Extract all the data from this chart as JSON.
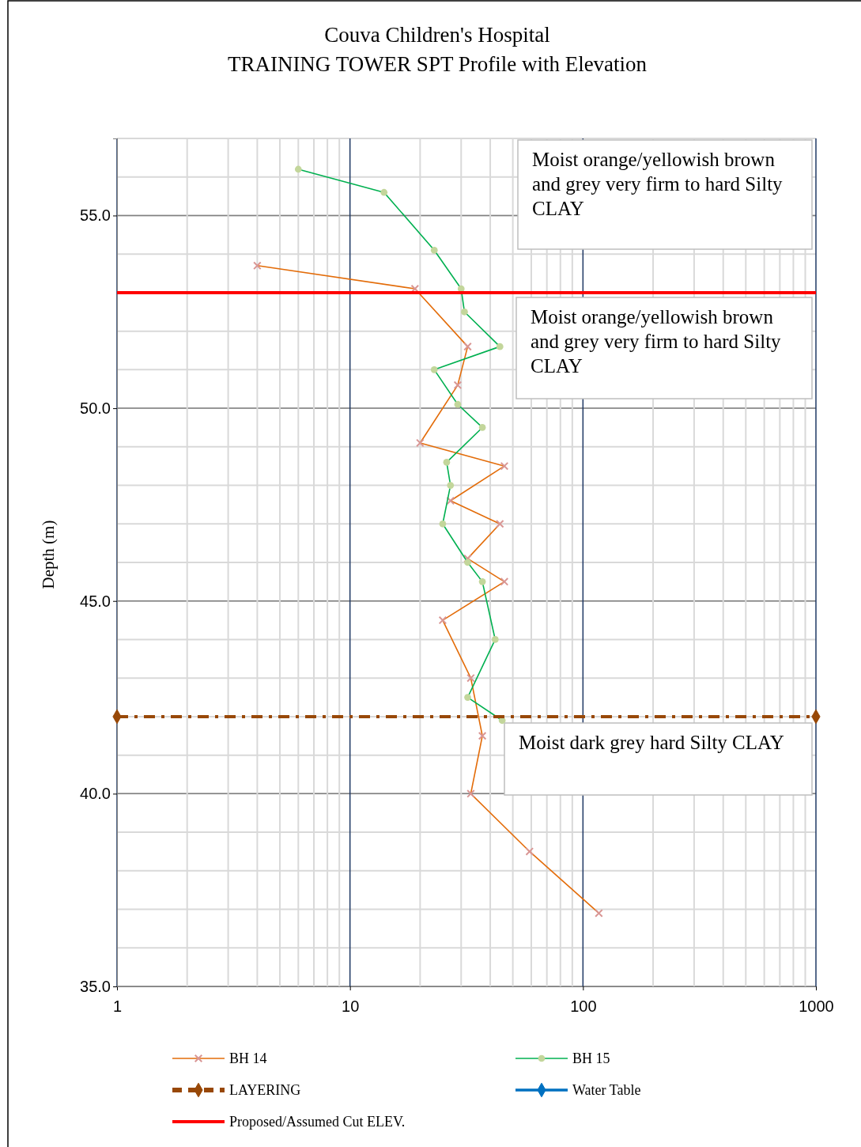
{
  "chart_data": {
    "type": "line",
    "title": "Couva Children's Hospital",
    "subtitle": "TRAINING TOWER SPT Profile with Elevation",
    "ylabel": "Depth (m)",
    "log": "x",
    "xlim": [
      1,
      1000
    ],
    "xticks": [
      1,
      10,
      100,
      1000
    ],
    "ylim": [
      35,
      57
    ],
    "yticks": [
      {
        "value": 35,
        "label": "35.0"
      },
      {
        "value": 40,
        "label": "40.0"
      },
      {
        "value": 45,
        "label": "45.0"
      },
      {
        "value": 50,
        "label": "50.0"
      },
      {
        "value": 55,
        "label": "55.0"
      }
    ],
    "grid": true,
    "legend": "bottom",
    "series": [
      {
        "name": "BH 14",
        "color": "#e36c09",
        "marker": "cross",
        "line_style": "solid",
        "x": [
          4,
          19,
          32,
          29,
          20,
          46,
          27,
          44,
          32,
          46,
          25,
          33,
          37,
          33,
          59,
          117
        ],
        "values": [
          53.7,
          53.1,
          51.6,
          50.6,
          49.1,
          48.5,
          47.6,
          47.0,
          46.1,
          45.5,
          44.5,
          43.0,
          41.5,
          40.0,
          38.5,
          36.9
        ]
      },
      {
        "name": "BH 15",
        "color": "#00b050",
        "marker": "circle",
        "line_style": "solid",
        "x": [
          6,
          14,
          23,
          30,
          31,
          44,
          23,
          29,
          37,
          26,
          27,
          25,
          32,
          37,
          42,
          32,
          45
        ],
        "values": [
          56.2,
          55.6,
          54.1,
          53.1,
          52.5,
          51.6,
          51.0,
          50.1,
          49.5,
          48.6,
          48.0,
          47.0,
          46.0,
          45.5,
          44.0,
          42.5,
          41.9
        ]
      },
      {
        "name": "LAYERING",
        "color": "#984807",
        "marker": "diamond",
        "line_style": "dashed",
        "x": [
          1,
          1000
        ],
        "values": [
          42.0,
          42.0
        ]
      },
      {
        "name": "Water Table",
        "color": "#0070c0",
        "marker": "diamond",
        "line_style": "solid"
      },
      {
        "name": "Proposed/Assumed Cut ELEV.",
        "color": "#ff0000",
        "marker": "none",
        "line_style": "solid",
        "x": [
          1,
          1000
        ],
        "values": [
          53.0,
          53.0
        ]
      }
    ],
    "annotations": [
      "Moist orange/yellowish brown and grey very firm to hard Silty CLAY",
      "Moist orange/yellowish brown and grey very firm to hard Silty CLAY",
      "Moist dark grey hard Silty CLAY"
    ]
  }
}
